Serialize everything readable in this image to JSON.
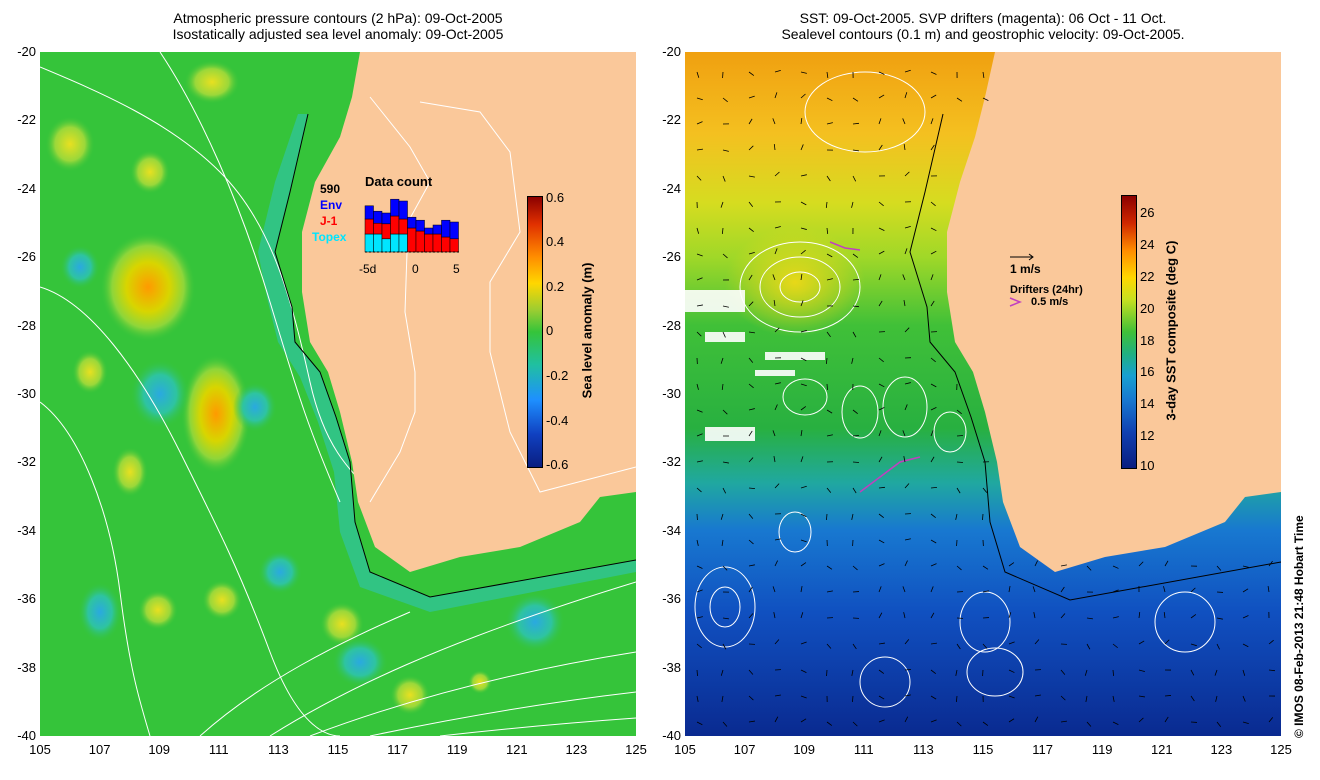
{
  "left_panel": {
    "title_line1": "Atmospheric pressure contours (2 hPa): 09-Oct-2005",
    "title_line2": "Isostatically adjusted sea level anomaly: 09-Oct-2005",
    "colorbar": {
      "label": "Sea level anomaly (m)",
      "ticks": [
        "0.6",
        "0.4",
        "0.2",
        "0",
        "-0.2",
        "-0.4",
        "-0.6"
      ],
      "range": [
        -0.6,
        0.6
      ]
    },
    "data_count": {
      "title": "Data count",
      "count": "590",
      "satellites": [
        {
          "name": "Env",
          "color": "#0000ff"
        },
        {
          "name": "J-1",
          "color": "#ff0000"
        },
        {
          "name": "Topex",
          "color": "#00e5ff"
        }
      ],
      "xticks": [
        "-5d",
        "0",
        "5"
      ],
      "bars": [
        {
          "topex": 0.3,
          "j1": 0.25,
          "env": 0.22
        },
        {
          "topex": 0.3,
          "j1": 0.18,
          "env": 0.2
        },
        {
          "topex": 0.22,
          "j1": 0.25,
          "env": 0.18
        },
        {
          "topex": 0.3,
          "j1": 0.3,
          "env": 0.28
        },
        {
          "topex": 0.3,
          "j1": 0.25,
          "env": 0.3
        },
        {
          "topex": 0.0,
          "j1": 0.4,
          "env": 0.18
        },
        {
          "topex": 0.0,
          "j1": 0.35,
          "env": 0.18
        },
        {
          "topex": 0.0,
          "j1": 0.3,
          "env": 0.1
        },
        {
          "topex": 0.0,
          "j1": 0.3,
          "env": 0.15
        },
        {
          "topex": 0.0,
          "j1": 0.25,
          "env": 0.28
        },
        {
          "topex": 0.0,
          "j1": 0.22,
          "env": 0.28
        }
      ]
    }
  },
  "right_panel": {
    "title_line1": "SST: 09-Oct-2005. SVP drifters (magenta): 06 Oct - 11 Oct.",
    "title_line2": "Sealevel contours (0.1 m) and geostrophic velocity: 09-Oct-2005.",
    "colorbar": {
      "label": "3-day SST composite (deg C)",
      "ticks": [
        "26",
        "24",
        "22",
        "20",
        "18",
        "16",
        "14",
        "12",
        "10"
      ],
      "range": [
        10,
        27
      ]
    },
    "velocity_legend": "1 m/s",
    "drifters_legend": "Drifters (24hr)",
    "drifters_speed": "0.5 m/s"
  },
  "axes": {
    "lat_ticks": [
      "-20",
      "-22",
      "-24",
      "-26",
      "-28",
      "-30",
      "-32",
      "-34",
      "-36",
      "-38",
      "-40"
    ],
    "lon_ticks": [
      "105",
      "107",
      "109",
      "111",
      "113",
      "115",
      "117",
      "119",
      "121",
      "123",
      "125"
    ]
  },
  "credit": "© IMOS 08-Feb-2013 21:48 Hobart Time",
  "colors": {
    "land": "#fac89a",
    "sla_background": "#35c43a",
    "sla_high": "#ffa500",
    "sla_low": "#2aa9e0",
    "sst_warm": "#ff8c00",
    "sst_cold": "#0a2ea8"
  }
}
